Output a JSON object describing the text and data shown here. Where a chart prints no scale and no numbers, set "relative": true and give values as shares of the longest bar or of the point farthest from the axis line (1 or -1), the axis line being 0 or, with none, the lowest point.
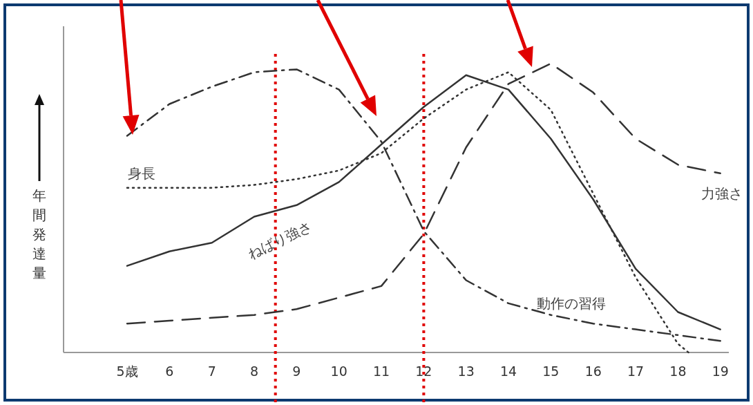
{
  "chart_data": {
    "type": "line",
    "ylabel": "年間発達量",
    "relative": true,
    "xlim": [
      3.5,
      19.2
    ],
    "xticks": [
      {
        "value": 5,
        "label": "5歳"
      },
      6,
      7,
      8,
      9,
      10,
      11,
      12,
      13,
      14,
      15,
      16,
      17,
      18,
      19
    ],
    "tick_labels": "x",
    "grid": false,
    "series": [
      {
        "name": "動作の習得",
        "color": "#333333",
        "line_style": "dashdot",
        "x": [
          5,
          6,
          7,
          8,
          9,
          10,
          11,
          12,
          13,
          14,
          15,
          16,
          17,
          18,
          19
        ],
        "values": [
          0.75,
          0.86,
          0.92,
          0.97,
          0.98,
          0.91,
          0.73,
          0.42,
          0.25,
          0.17,
          0.13,
          0.1,
          0.08,
          0.06,
          0.04
        ]
      },
      {
        "name": "身長",
        "color": "#333333",
        "line_style": "dotted",
        "x": [
          5,
          6,
          7,
          8,
          9,
          10,
          11,
          12,
          13,
          14,
          15,
          16,
          17,
          18,
          18.25
        ],
        "values": [
          0.57,
          0.57,
          0.57,
          0.58,
          0.6,
          0.63,
          0.69,
          0.81,
          0.91,
          0.97,
          0.84,
          0.55,
          0.26,
          0.03,
          0
        ]
      },
      {
        "name": "ねばり強さ",
        "color": "#333333",
        "line_style": "solid",
        "x": [
          5,
          6,
          7,
          8,
          9,
          10,
          11,
          12,
          13,
          14,
          15,
          16,
          17,
          18,
          19
        ],
        "values": [
          0.3,
          0.35,
          0.38,
          0.47,
          0.51,
          0.59,
          0.72,
          0.85,
          0.96,
          0.91,
          0.74,
          0.53,
          0.29,
          0.14,
          0.08
        ]
      },
      {
        "name": "力強さ",
        "color": "#333333",
        "line_style": "dashed",
        "x": [
          5,
          6,
          7,
          8,
          9,
          10,
          11,
          12,
          13,
          14,
          15,
          16,
          17,
          18,
          19
        ],
        "values": [
          0.1,
          0.11,
          0.12,
          0.13,
          0.15,
          0.19,
          0.23,
          0.41,
          0.71,
          0.93,
          1.0,
          0.9,
          0.74,
          0.65,
          0.62
        ]
      }
    ],
    "ref_lines": [
      {
        "axis": "x",
        "value": 8.5,
        "color": "#e00000",
        "line_style": "dotted"
      },
      {
        "axis": "x",
        "value": 12,
        "color": "#e00000",
        "line_style": "dotted"
      }
    ]
  }
}
